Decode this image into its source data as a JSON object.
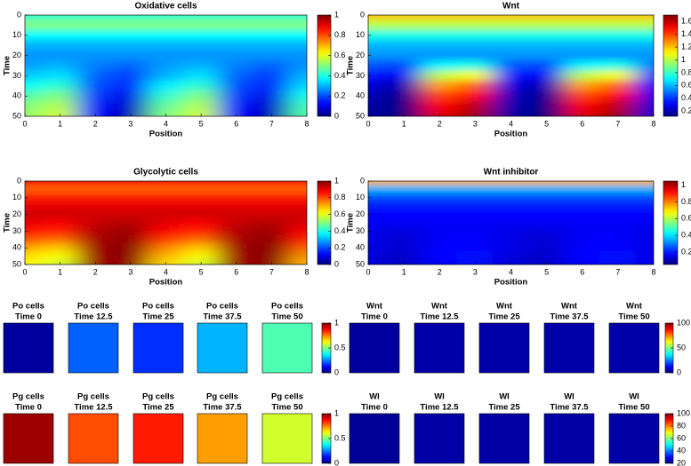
{
  "chart_data": [
    {
      "type": "heatmap",
      "title": "Oxidative cells",
      "xlabel": "Position",
      "ylabel": "Time",
      "colormap": "jet",
      "x": [
        0,
        1,
        2,
        3,
        4,
        5,
        6,
        7,
        8
      ],
      "y": [
        0,
        5,
        10,
        15,
        20,
        25,
        30,
        35,
        40,
        45,
        50
      ],
      "values": [
        [
          0.42,
          0.42,
          0.42,
          0.42,
          0.42,
          0.42,
          0.42,
          0.42,
          0.42
        ],
        [
          0.5,
          0.5,
          0.5,
          0.5,
          0.5,
          0.5,
          0.5,
          0.5,
          0.5
        ],
        [
          0.38,
          0.38,
          0.38,
          0.38,
          0.38,
          0.38,
          0.38,
          0.38,
          0.38
        ],
        [
          0.3,
          0.3,
          0.3,
          0.3,
          0.3,
          0.3,
          0.3,
          0.3,
          0.3
        ],
        [
          0.27,
          0.27,
          0.27,
          0.27,
          0.27,
          0.27,
          0.27,
          0.27,
          0.27
        ],
        [
          0.28,
          0.3,
          0.25,
          0.22,
          0.28,
          0.3,
          0.25,
          0.22,
          0.27
        ],
        [
          0.32,
          0.35,
          0.22,
          0.18,
          0.3,
          0.35,
          0.22,
          0.18,
          0.3
        ],
        [
          0.38,
          0.42,
          0.2,
          0.15,
          0.36,
          0.42,
          0.2,
          0.15,
          0.34
        ],
        [
          0.45,
          0.5,
          0.18,
          0.1,
          0.42,
          0.5,
          0.18,
          0.1,
          0.4
        ],
        [
          0.5,
          0.55,
          0.15,
          0.07,
          0.47,
          0.55,
          0.15,
          0.07,
          0.44
        ],
        [
          0.52,
          0.58,
          0.13,
          0.05,
          0.5,
          0.58,
          0.13,
          0.05,
          0.46
        ]
      ],
      "xlim": [
        0,
        8
      ],
      "ylim": [
        50,
        0
      ],
      "xticks": [
        0,
        1,
        2,
        3,
        4,
        5,
        6,
        7,
        8
      ],
      "yticks": [
        0,
        10,
        20,
        30,
        40,
        50
      ],
      "clim": [
        0,
        1
      ],
      "cticks": [
        0,
        0.2,
        0.4,
        0.6,
        0.8,
        1
      ]
    },
    {
      "type": "heatmap",
      "title": "Wnt",
      "xlabel": "Position",
      "ylabel": "Time",
      "colormap": "jet",
      "x": [
        0,
        1,
        2,
        3,
        4,
        5,
        6,
        7,
        8
      ],
      "y": [
        0,
        5,
        10,
        15,
        20,
        25,
        30,
        35,
        40,
        45,
        50
      ],
      "values": [
        [
          1.2,
          1.2,
          1.2,
          1.2,
          1.2,
          1.2,
          1.2,
          1.2,
          1.2
        ],
        [
          1.0,
          1.0,
          1.0,
          1.0,
          1.0,
          1.0,
          1.0,
          1.0,
          1.0
        ],
        [
          0.75,
          0.75,
          0.75,
          0.75,
          0.75,
          0.75,
          0.75,
          0.75,
          0.75
        ],
        [
          0.6,
          0.6,
          0.6,
          0.6,
          0.6,
          0.6,
          0.6,
          0.6,
          0.6
        ],
        [
          0.55,
          0.55,
          0.55,
          0.55,
          0.55,
          0.55,
          0.55,
          0.55,
          0.55
        ],
        [
          0.45,
          0.42,
          0.7,
          0.75,
          0.45,
          0.42,
          0.7,
          0.75,
          0.5
        ],
        [
          0.35,
          0.3,
          1.0,
          1.1,
          0.35,
          0.3,
          1.0,
          1.1,
          0.4
        ],
        [
          0.25,
          0.2,
          1.25,
          1.35,
          0.27,
          0.2,
          1.25,
          1.35,
          0.32
        ],
        [
          0.2,
          0.15,
          1.4,
          1.5,
          0.22,
          0.15,
          1.4,
          1.5,
          0.28
        ],
        [
          0.18,
          0.13,
          1.5,
          1.6,
          0.2,
          0.13,
          1.5,
          1.6,
          0.25
        ],
        [
          0.17,
          0.12,
          1.55,
          1.65,
          0.18,
          0.12,
          1.55,
          1.65,
          0.24
        ]
      ],
      "xlim": [
        0,
        8
      ],
      "ylim": [
        50,
        0
      ],
      "xticks": [
        0,
        1,
        2,
        3,
        4,
        5,
        6,
        7,
        8
      ],
      "yticks": [
        0,
        10,
        20,
        30,
        40,
        50
      ],
      "clim": [
        0.12,
        1.7
      ],
      "cticks": [
        0.2,
        0.4,
        0.6,
        0.8,
        1,
        1.2,
        1.4,
        1.6
      ]
    },
    {
      "type": "heatmap",
      "title": "Glycolytic cells",
      "xlabel": "Position",
      "ylabel": "Time",
      "colormap": "jet",
      "x": [
        0,
        1,
        2,
        3,
        4,
        5,
        6,
        7,
        8
      ],
      "y": [
        0,
        5,
        10,
        15,
        20,
        25,
        30,
        35,
        40,
        45,
        50
      ],
      "values": [
        [
          0.88,
          0.88,
          0.88,
          0.88,
          0.88,
          0.88,
          0.88,
          0.88,
          0.88
        ],
        [
          0.78,
          0.78,
          0.78,
          0.78,
          0.78,
          0.78,
          0.78,
          0.78,
          0.78
        ],
        [
          0.85,
          0.85,
          0.85,
          0.85,
          0.85,
          0.85,
          0.85,
          0.85,
          0.85
        ],
        [
          0.9,
          0.9,
          0.9,
          0.9,
          0.9,
          0.9,
          0.9,
          0.9,
          0.9
        ],
        [
          0.92,
          0.92,
          0.92,
          0.92,
          0.92,
          0.92,
          0.92,
          0.92,
          0.92
        ],
        [
          0.9,
          0.88,
          0.93,
          0.95,
          0.9,
          0.88,
          0.93,
          0.95,
          0.91
        ],
        [
          0.86,
          0.84,
          0.95,
          0.97,
          0.87,
          0.84,
          0.95,
          0.97,
          0.88
        ],
        [
          0.8,
          0.77,
          0.96,
          0.98,
          0.82,
          0.77,
          0.96,
          0.98,
          0.84
        ],
        [
          0.72,
          0.68,
          0.97,
          0.99,
          0.75,
          0.68,
          0.97,
          0.99,
          0.78
        ],
        [
          0.66,
          0.62,
          0.97,
          0.99,
          0.7,
          0.62,
          0.97,
          0.99,
          0.73
        ],
        [
          0.63,
          0.58,
          0.97,
          0.99,
          0.66,
          0.58,
          0.97,
          0.99,
          0.7
        ]
      ],
      "xlim": [
        0,
        8
      ],
      "ylim": [
        50,
        0
      ],
      "xticks": [
        0,
        1,
        2,
        3,
        4,
        5,
        6,
        7,
        8
      ],
      "yticks": [
        0,
        10,
        20,
        30,
        40,
        50
      ],
      "clim": [
        0,
        1
      ],
      "cticks": [
        0,
        0.2,
        0.4,
        0.6,
        0.8,
        1
      ]
    },
    {
      "type": "heatmap",
      "title": "Wnt inhibitor",
      "xlabel": "Position",
      "ylabel": "Time",
      "colormap": "jet",
      "x": [
        0,
        1,
        2,
        3,
        4,
        5,
        6,
        7,
        8
      ],
      "y": [
        0,
        5,
        10,
        15,
        20,
        25,
        30,
        35,
        40,
        45,
        50
      ],
      "values": [
        [
          0.75,
          0.75,
          0.75,
          0.75,
          0.75,
          0.75,
          0.75,
          0.75,
          0.75
        ],
        [
          0.35,
          0.35,
          0.35,
          0.35,
          0.35,
          0.35,
          0.35,
          0.35,
          0.35
        ],
        [
          0.25,
          0.25,
          0.25,
          0.25,
          0.25,
          0.25,
          0.25,
          0.25,
          0.25
        ],
        [
          0.2,
          0.2,
          0.2,
          0.2,
          0.2,
          0.2,
          0.2,
          0.2,
          0.2
        ],
        [
          0.18,
          0.18,
          0.18,
          0.18,
          0.18,
          0.18,
          0.18,
          0.18,
          0.18
        ],
        [
          0.17,
          0.17,
          0.17,
          0.17,
          0.17,
          0.17,
          0.17,
          0.17,
          0.17
        ],
        [
          0.15,
          0.14,
          0.17,
          0.17,
          0.15,
          0.14,
          0.17,
          0.17,
          0.15
        ],
        [
          0.15,
          0.13,
          0.17,
          0.18,
          0.15,
          0.13,
          0.17,
          0.18,
          0.15
        ],
        [
          0.15,
          0.13,
          0.18,
          0.18,
          0.15,
          0.13,
          0.18,
          0.18,
          0.15
        ],
        [
          0.14,
          0.12,
          0.18,
          0.19,
          0.14,
          0.12,
          0.18,
          0.19,
          0.15
        ],
        [
          0.14,
          0.12,
          0.18,
          0.19,
          0.14,
          0.12,
          0.18,
          0.19,
          0.15
        ]
      ],
      "xlim": [
        0,
        8
      ],
      "ylim": [
        50,
        0
      ],
      "xticks": [
        0,
        1,
        2,
        3,
        4,
        5,
        6,
        7,
        8
      ],
      "yticks": [
        0,
        10,
        20,
        30,
        40,
        50
      ],
      "clim": [
        0.05,
        1.05
      ],
      "cticks": [
        0.2,
        0.4,
        0.6,
        0.8,
        1
      ]
    },
    {
      "type": "image-grid",
      "colormap": "jet",
      "clim": [
        0,
        1
      ],
      "cticks": [
        0,
        0.5,
        1
      ],
      "panels": [
        {
          "title": "Po cells",
          "subtitle": "Time 0",
          "value": 0.03
        },
        {
          "title": "Po cells",
          "subtitle": "Time 12.5",
          "value": 0.22
        },
        {
          "title": "Po cells",
          "subtitle": "Time 25",
          "value": 0.17
        },
        {
          "title": "Po cells",
          "subtitle": "Time 37.5",
          "value": 0.3
        },
        {
          "title": "Po cells",
          "subtitle": "Time 50",
          "value": 0.45
        }
      ]
    },
    {
      "type": "image-grid",
      "colormap": "jet",
      "clim": [
        0,
        100
      ],
      "cticks": [
        0,
        50,
        100
      ],
      "panels": [
        {
          "title": "Wnt",
          "subtitle": "Time 0",
          "value": 3
        },
        {
          "title": "Wnt",
          "subtitle": "Time 12.5",
          "value": 4
        },
        {
          "title": "Wnt",
          "subtitle": "Time 25",
          "value": 4
        },
        {
          "title": "Wnt",
          "subtitle": "Time 37.5",
          "value": 4
        },
        {
          "title": "Wnt",
          "subtitle": "Time 50",
          "value": 4
        }
      ]
    },
    {
      "type": "image-grid",
      "colormap": "jet",
      "clim": [
        0,
        1
      ],
      "cticks": [
        0,
        0.5,
        1
      ],
      "panels": [
        {
          "title": "Pg cells",
          "subtitle": "Time 0",
          "value": 0.97
        },
        {
          "title": "Pg cells",
          "subtitle": "Time 12.5",
          "value": 0.8
        },
        {
          "title": "Pg cells",
          "subtitle": "Time 25",
          "value": 0.85
        },
        {
          "title": "Pg cells",
          "subtitle": "Time 37.5",
          "value": 0.72
        },
        {
          "title": "Pg cells",
          "subtitle": "Time 50",
          "value": 0.58
        }
      ]
    },
    {
      "type": "image-grid",
      "colormap": "jet",
      "clim": [
        20,
        100
      ],
      "cticks": [
        20,
        40,
        60,
        80,
        100
      ],
      "panels": [
        {
          "title": "WI",
          "subtitle": "Time 0",
          "value": 22
        },
        {
          "title": "WI",
          "subtitle": "Time 12.5",
          "value": 23
        },
        {
          "title": "WI",
          "subtitle": "Time 25",
          "value": 23
        },
        {
          "title": "WI",
          "subtitle": "Time 37.5",
          "value": 23
        },
        {
          "title": "WI",
          "subtitle": "Time 50",
          "value": 23
        }
      ]
    }
  ]
}
